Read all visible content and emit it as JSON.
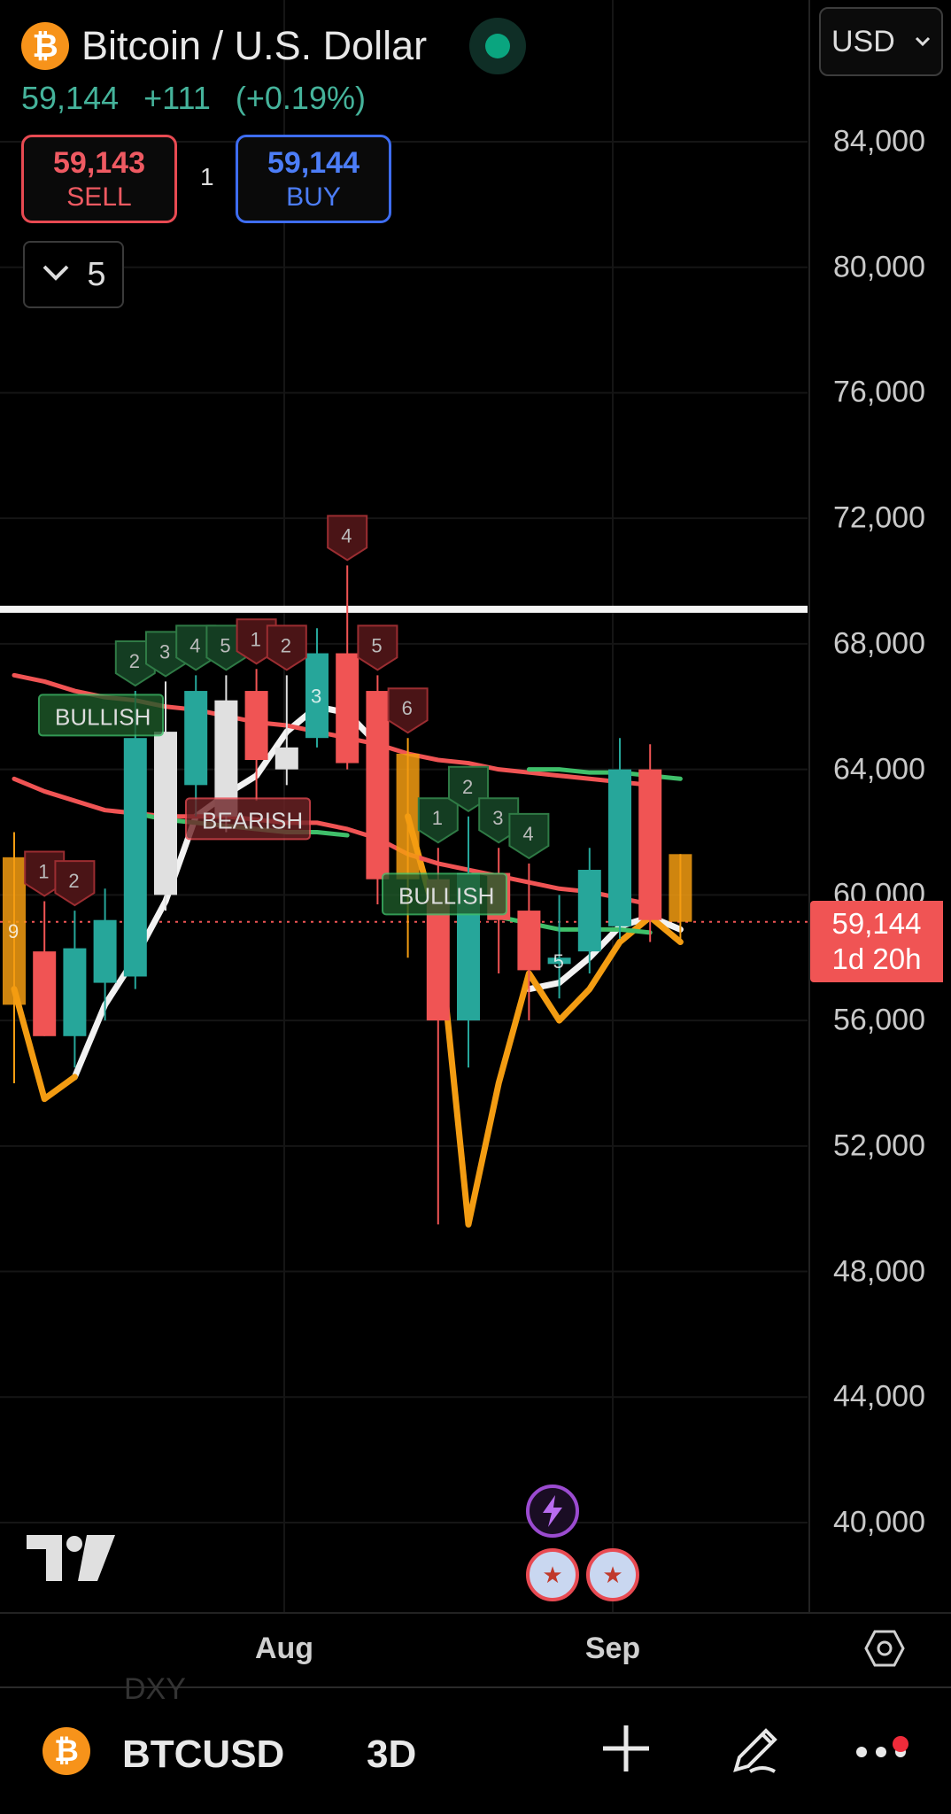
{
  "header": {
    "coin_glyph": "₿",
    "title": "Bitcoin / U.S. Dollar",
    "last_price": "59,144",
    "change": "+111",
    "change_pct": "(+0.19%)",
    "live_status_color": "#0aa57f"
  },
  "trade": {
    "sell_price": "59,143",
    "sell_label": "SELL",
    "spread": "1",
    "buy_price": "59,144",
    "buy_label": "BUY"
  },
  "indicators_toggle": {
    "icon": "chevron-down-icon",
    "count": "5"
  },
  "currency_select": {
    "value": "USD",
    "icon": "chevron-down-icon"
  },
  "price_axis": {
    "labels": [
      "84,000",
      "80,000",
      "76,000",
      "72,000",
      "68,000",
      "64,000",
      "60,000",
      "56,000",
      "52,000",
      "48,000",
      "44,000",
      "40,000"
    ],
    "current_price": "59,144",
    "countdown": "1d 20h",
    "current_price_color": "#f05454"
  },
  "time_axis": {
    "labels": [
      "Aug",
      "Sep"
    ]
  },
  "logo": "TV",
  "events": {
    "bolt_icon": "lightning-icon",
    "flag_icon": "us-flag-icon",
    "flag_glyph": "★"
  },
  "bottom_bar": {
    "ghost_text": "DXY",
    "symbol": "BTCUSD",
    "interval": "3D",
    "add_icon": "plus-icon",
    "draw_icon": "pencil-icon",
    "more_icon": "more-icon"
  },
  "chart_data": {
    "type": "candlestick",
    "ylim": [
      38500,
      88000
    ],
    "horizontal_line": 69100,
    "current_price_line": 59144,
    "colors": {
      "up": "#26a69a",
      "down": "#f05454",
      "neutral": "#e0e0e0",
      "warn": "#f39c12"
    },
    "candles": [
      {
        "o": 61200,
        "h": 62000,
        "l": 54000,
        "c": 56500,
        "color": "orange"
      },
      {
        "o": 58200,
        "h": 59800,
        "l": 55500,
        "c": 55500,
        "color": "red"
      },
      {
        "o": 55500,
        "h": 59500,
        "l": 54500,
        "c": 58300,
        "color": "teal"
      },
      {
        "o": 57200,
        "h": 60200,
        "l": 56000,
        "c": 59200,
        "color": "teal"
      },
      {
        "o": 57400,
        "h": 66500,
        "l": 57000,
        "c": 65000,
        "color": "teal"
      },
      {
        "o": 60000,
        "h": 66800,
        "l": 59500,
        "c": 65200,
        "color": "white"
      },
      {
        "o": 63500,
        "h": 67000,
        "l": 62500,
        "c": 66500,
        "color": "teal"
      },
      {
        "o": 62500,
        "h": 67000,
        "l": 62000,
        "c": 66200,
        "color": "white"
      },
      {
        "o": 66500,
        "h": 67200,
        "l": 63000,
        "c": 64300,
        "color": "red"
      },
      {
        "o": 64000,
        "h": 67000,
        "l": 63500,
        "c": 64700,
        "color": "white"
      },
      {
        "o": 65000,
        "h": 68500,
        "l": 64700,
        "c": 67700,
        "color": "teal"
      },
      {
        "o": 67700,
        "h": 70500,
        "l": 64000,
        "c": 64200,
        "color": "red"
      },
      {
        "o": 66500,
        "h": 67000,
        "l": 59700,
        "c": 60500,
        "color": "red"
      },
      {
        "o": 64500,
        "h": 65000,
        "l": 58000,
        "c": 60500,
        "color": "orange"
      },
      {
        "o": 60500,
        "h": 61500,
        "l": 49500,
        "c": 56000,
        "color": "red"
      },
      {
        "o": 56000,
        "h": 62500,
        "l": 54500,
        "c": 60700,
        "color": "teal"
      },
      {
        "o": 60700,
        "h": 61500,
        "l": 57500,
        "c": 59200,
        "color": "red"
      },
      {
        "o": 59500,
        "h": 61000,
        "l": 56000,
        "c": 57600,
        "color": "red"
      },
      {
        "o": 58000,
        "h": 60000,
        "l": 56700,
        "c": 57800,
        "color": "teal"
      },
      {
        "o": 58200,
        "h": 61500,
        "l": 57500,
        "c": 60800,
        "color": "teal"
      },
      {
        "o": 59000,
        "h": 65000,
        "l": 58600,
        "c": 64000,
        "color": "teal"
      },
      {
        "o": 64000,
        "h": 64800,
        "l": 58500,
        "c": 59200,
        "color": "red"
      },
      {
        "o": 61300,
        "h": 61300,
        "l": 58500,
        "c": 59144,
        "color": "orange"
      }
    ],
    "series": [
      {
        "name": "",
        "color": "#f2f2f2",
        "values": [
          null,
          null,
          54200,
          56500,
          58000,
          59800,
          62500,
          63200,
          63800,
          65200,
          66000,
          65800,
          64800,
          null,
          null,
          null,
          null,
          57000,
          57200,
          58000,
          59000,
          59300,
          58900
        ]
      },
      {
        "name": "",
        "color": "#f39c12",
        "values": [
          57000,
          53500,
          54200,
          null,
          null,
          null,
          null,
          null,
          null,
          null,
          null,
          null,
          null,
          62500,
          59000,
          49500,
          54000,
          57500,
          56000,
          57000,
          58500,
          59300,
          58500
        ]
      },
      {
        "name": "",
        "color": "#f05454",
        "values": [
          67000,
          66800,
          66500,
          66300,
          66200,
          66000,
          65900,
          65700,
          65500,
          65400,
          65200,
          65000,
          64800,
          64500,
          64300,
          64200,
          64000,
          63900,
          63800,
          63700,
          63600,
          63500,
          null
        ]
      },
      {
        "name": "",
        "color": "#f05454",
        "values": [
          63700,
          63300,
          63000,
          62700,
          62600,
          62500,
          62500,
          62500,
          62400,
          62300,
          62300,
          62100,
          61800,
          61300,
          61000,
          60800,
          60600,
          60400,
          60200,
          60100,
          59900,
          59700,
          null
        ]
      },
      {
        "name": "",
        "color": "#3fbf6a",
        "values": [
          null,
          null,
          null,
          null,
          62600,
          62400,
          62300,
          62200,
          62100,
          62000,
          62000,
          61900,
          null,
          null,
          null,
          null,
          59300,
          59100,
          58900,
          58900,
          58900,
          58800,
          null
        ]
      },
      {
        "name": "",
        "color": "#3fbf6a",
        "values": [
          null,
          null,
          null,
          null,
          null,
          null,
          null,
          null,
          null,
          null,
          null,
          null,
          null,
          null,
          null,
          null,
          null,
          64000,
          64000,
          63900,
          63900,
          63800,
          63700
        ]
      }
    ],
    "counters": [
      {
        "i": 0,
        "t": "9",
        "kind": "orange",
        "pos": "inside"
      },
      {
        "i": 1,
        "t": "1",
        "kind": "red",
        "pos": "above"
      },
      {
        "i": 2,
        "t": "2",
        "kind": "red",
        "pos": "above"
      },
      {
        "i": 4,
        "t": "2",
        "kind": "green",
        "pos": "above"
      },
      {
        "i": 5,
        "t": "3",
        "kind": "green",
        "pos": "above"
      },
      {
        "i": 6,
        "t": "4",
        "kind": "green",
        "pos": "above"
      },
      {
        "i": 7,
        "t": "5",
        "kind": "green",
        "pos": "above"
      },
      {
        "i": 8,
        "t": "1",
        "kind": "red",
        "pos": "above"
      },
      {
        "i": 9,
        "t": "2",
        "kind": "red",
        "pos": "above"
      },
      {
        "i": 10,
        "t": "3",
        "kind": "orange",
        "pos": "inside"
      },
      {
        "i": 11,
        "t": "4",
        "kind": "red",
        "pos": "above"
      },
      {
        "i": 12,
        "t": "5",
        "kind": "red",
        "pos": "above"
      },
      {
        "i": 13,
        "t": "6",
        "kind": "red",
        "pos": "above"
      },
      {
        "i": 14,
        "t": "1",
        "kind": "green",
        "pos": "above"
      },
      {
        "i": 15,
        "t": "2",
        "kind": "green",
        "pos": "above"
      },
      {
        "i": 16,
        "t": "3",
        "kind": "green",
        "pos": "above"
      },
      {
        "i": 17,
        "t": "4",
        "kind": "green",
        "pos": "above"
      },
      {
        "i": 18,
        "t": "5",
        "kind": "orange",
        "pos": "inside"
      }
    ],
    "signal_labels": [
      {
        "text": "BULLISH",
        "kind": "green",
        "price": 65700
      },
      {
        "text": "BEARISH",
        "kind": "red",
        "price": 62400
      },
      {
        "text": "BULLISH",
        "kind": "green",
        "price": 60000
      }
    ]
  }
}
